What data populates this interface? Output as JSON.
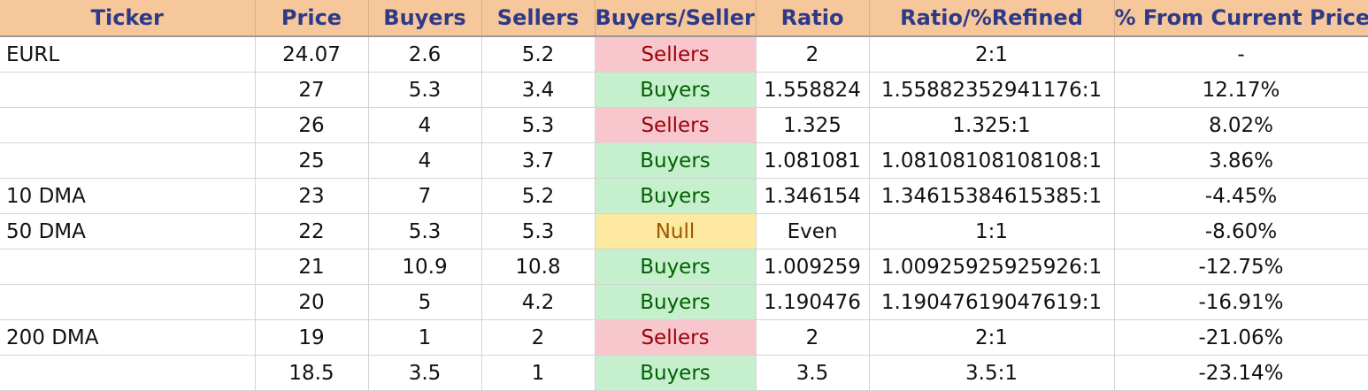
{
  "columns": [
    "Ticker",
    "Price",
    "Buyers",
    "Sellers",
    "Buyers/Sellers",
    "Ratio",
    "Ratio/%Refined",
    "% From Current Price"
  ],
  "colors": {
    "header_bg": "#f6c79b",
    "header_text": "#2e3a87",
    "sellers_bg": "#f8c7ce",
    "sellers_text": "#9c0006",
    "buyers_bg": "#c6efce",
    "buyers_text": "#006100",
    "null_bg": "#fde9a0",
    "null_text": "#9c5700"
  },
  "rows": [
    {
      "ticker": "EURL",
      "price": "24.07",
      "buyers": "2.6",
      "sellers": "5.2",
      "signal": "Sellers",
      "ratio": "2",
      "refined": "2:1",
      "pct": "-"
    },
    {
      "ticker": "",
      "price": "27",
      "buyers": "5.3",
      "sellers": "3.4",
      "signal": "Buyers",
      "ratio": "1.558824",
      "refined": "1.55882352941176:1",
      "pct": "12.17%"
    },
    {
      "ticker": "",
      "price": "26",
      "buyers": "4",
      "sellers": "5.3",
      "signal": "Sellers",
      "ratio": "1.325",
      "refined": "1.325:1",
      "pct": "8.02%"
    },
    {
      "ticker": "",
      "price": "25",
      "buyers": "4",
      "sellers": "3.7",
      "signal": "Buyers",
      "ratio": "1.081081",
      "refined": "1.08108108108108:1",
      "pct": "3.86%"
    },
    {
      "ticker": "10 DMA",
      "price": "23",
      "buyers": "7",
      "sellers": "5.2",
      "signal": "Buyers",
      "ratio": "1.346154",
      "refined": "1.34615384615385:1",
      "pct": "-4.45%"
    },
    {
      "ticker": "50 DMA",
      "price": "22",
      "buyers": "5.3",
      "sellers": "5.3",
      "signal": "Null",
      "ratio": "Even",
      "refined": "1:1",
      "pct": "-8.60%"
    },
    {
      "ticker": "",
      "price": "21",
      "buyers": "10.9",
      "sellers": "10.8",
      "signal": "Buyers",
      "ratio": "1.009259",
      "refined": "1.00925925925926:1",
      "pct": "-12.75%"
    },
    {
      "ticker": "",
      "price": "20",
      "buyers": "5",
      "sellers": "4.2",
      "signal": "Buyers",
      "ratio": "1.190476",
      "refined": "1.19047619047619:1",
      "pct": "-16.91%"
    },
    {
      "ticker": "200 DMA",
      "price": "19",
      "buyers": "1",
      "sellers": "2",
      "signal": "Sellers",
      "ratio": "2",
      "refined": "2:1",
      "pct": "-21.06%"
    },
    {
      "ticker": "",
      "price": "18.5",
      "buyers": "3.5",
      "sellers": "1",
      "signal": "Buyers",
      "ratio": "3.5",
      "refined": "3.5:1",
      "pct": "-23.14%"
    }
  ]
}
